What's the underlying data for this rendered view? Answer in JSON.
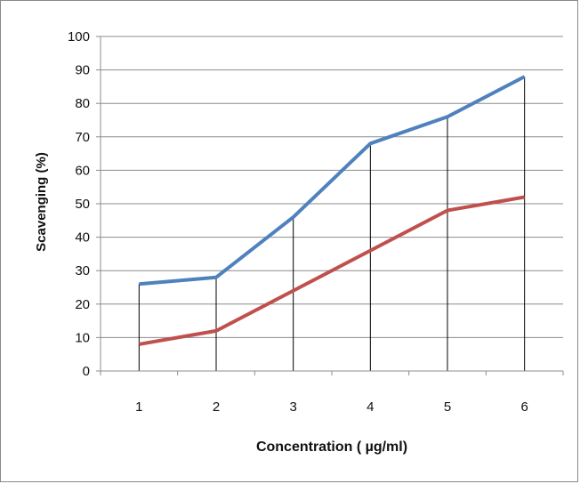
{
  "chart_data": {
    "type": "line",
    "title": "",
    "xlabel": "Concentration ( µg/ml)",
    "ylabel": "Scavenging (%)",
    "categories": [
      "1",
      "2",
      "3",
      "4",
      "5",
      "6"
    ],
    "ylim": [
      0,
      100
    ],
    "yticks": [
      0,
      10,
      20,
      30,
      40,
      50,
      60,
      70,
      80,
      90,
      100
    ],
    "grid": true,
    "legend": "none",
    "drop_lines": true,
    "series": [
      {
        "color": "#4f81bd",
        "values": [
          26,
          28,
          46,
          68,
          76,
          88
        ]
      },
      {
        "color": "#c0504d",
        "values": [
          8,
          12,
          24,
          36,
          48,
          52
        ]
      }
    ]
  }
}
